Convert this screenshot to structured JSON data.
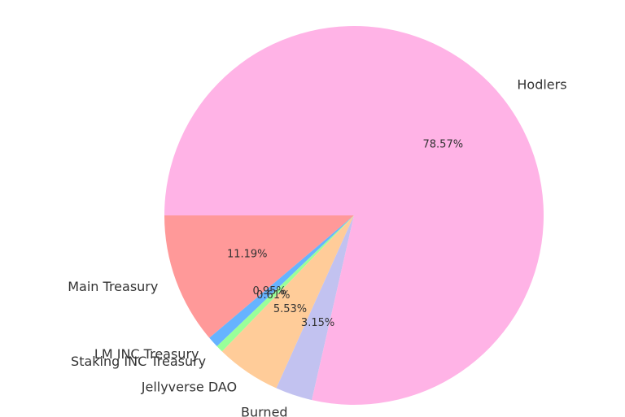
{
  "chart_data": {
    "type": "pie",
    "title": "",
    "start_angle_deg": 180,
    "direction": "counterclockwise",
    "slices": [
      {
        "label": "Main Treasury",
        "value": 11.19,
        "pct_label": "11.19%",
        "color": "#ff9999"
      },
      {
        "label": "LM INC Treasury",
        "value": 0.95,
        "pct_label": "0.95%",
        "color": "#66b3ff"
      },
      {
        "label": "Staking INC Treasury",
        "value": 0.61,
        "pct_label": "0.61%",
        "color": "#99ff99"
      },
      {
        "label": "Jellyverse DAO",
        "value": 5.53,
        "pct_label": "5.53%",
        "color": "#ffcc99"
      },
      {
        "label": "Burned",
        "value": 3.15,
        "pct_label": "3.15%",
        "color": "#c2c2f0"
      },
      {
        "label": "Hodlers",
        "value": 78.57,
        "pct_label": "78.57%",
        "color": "#ffb3e6"
      }
    ]
  }
}
